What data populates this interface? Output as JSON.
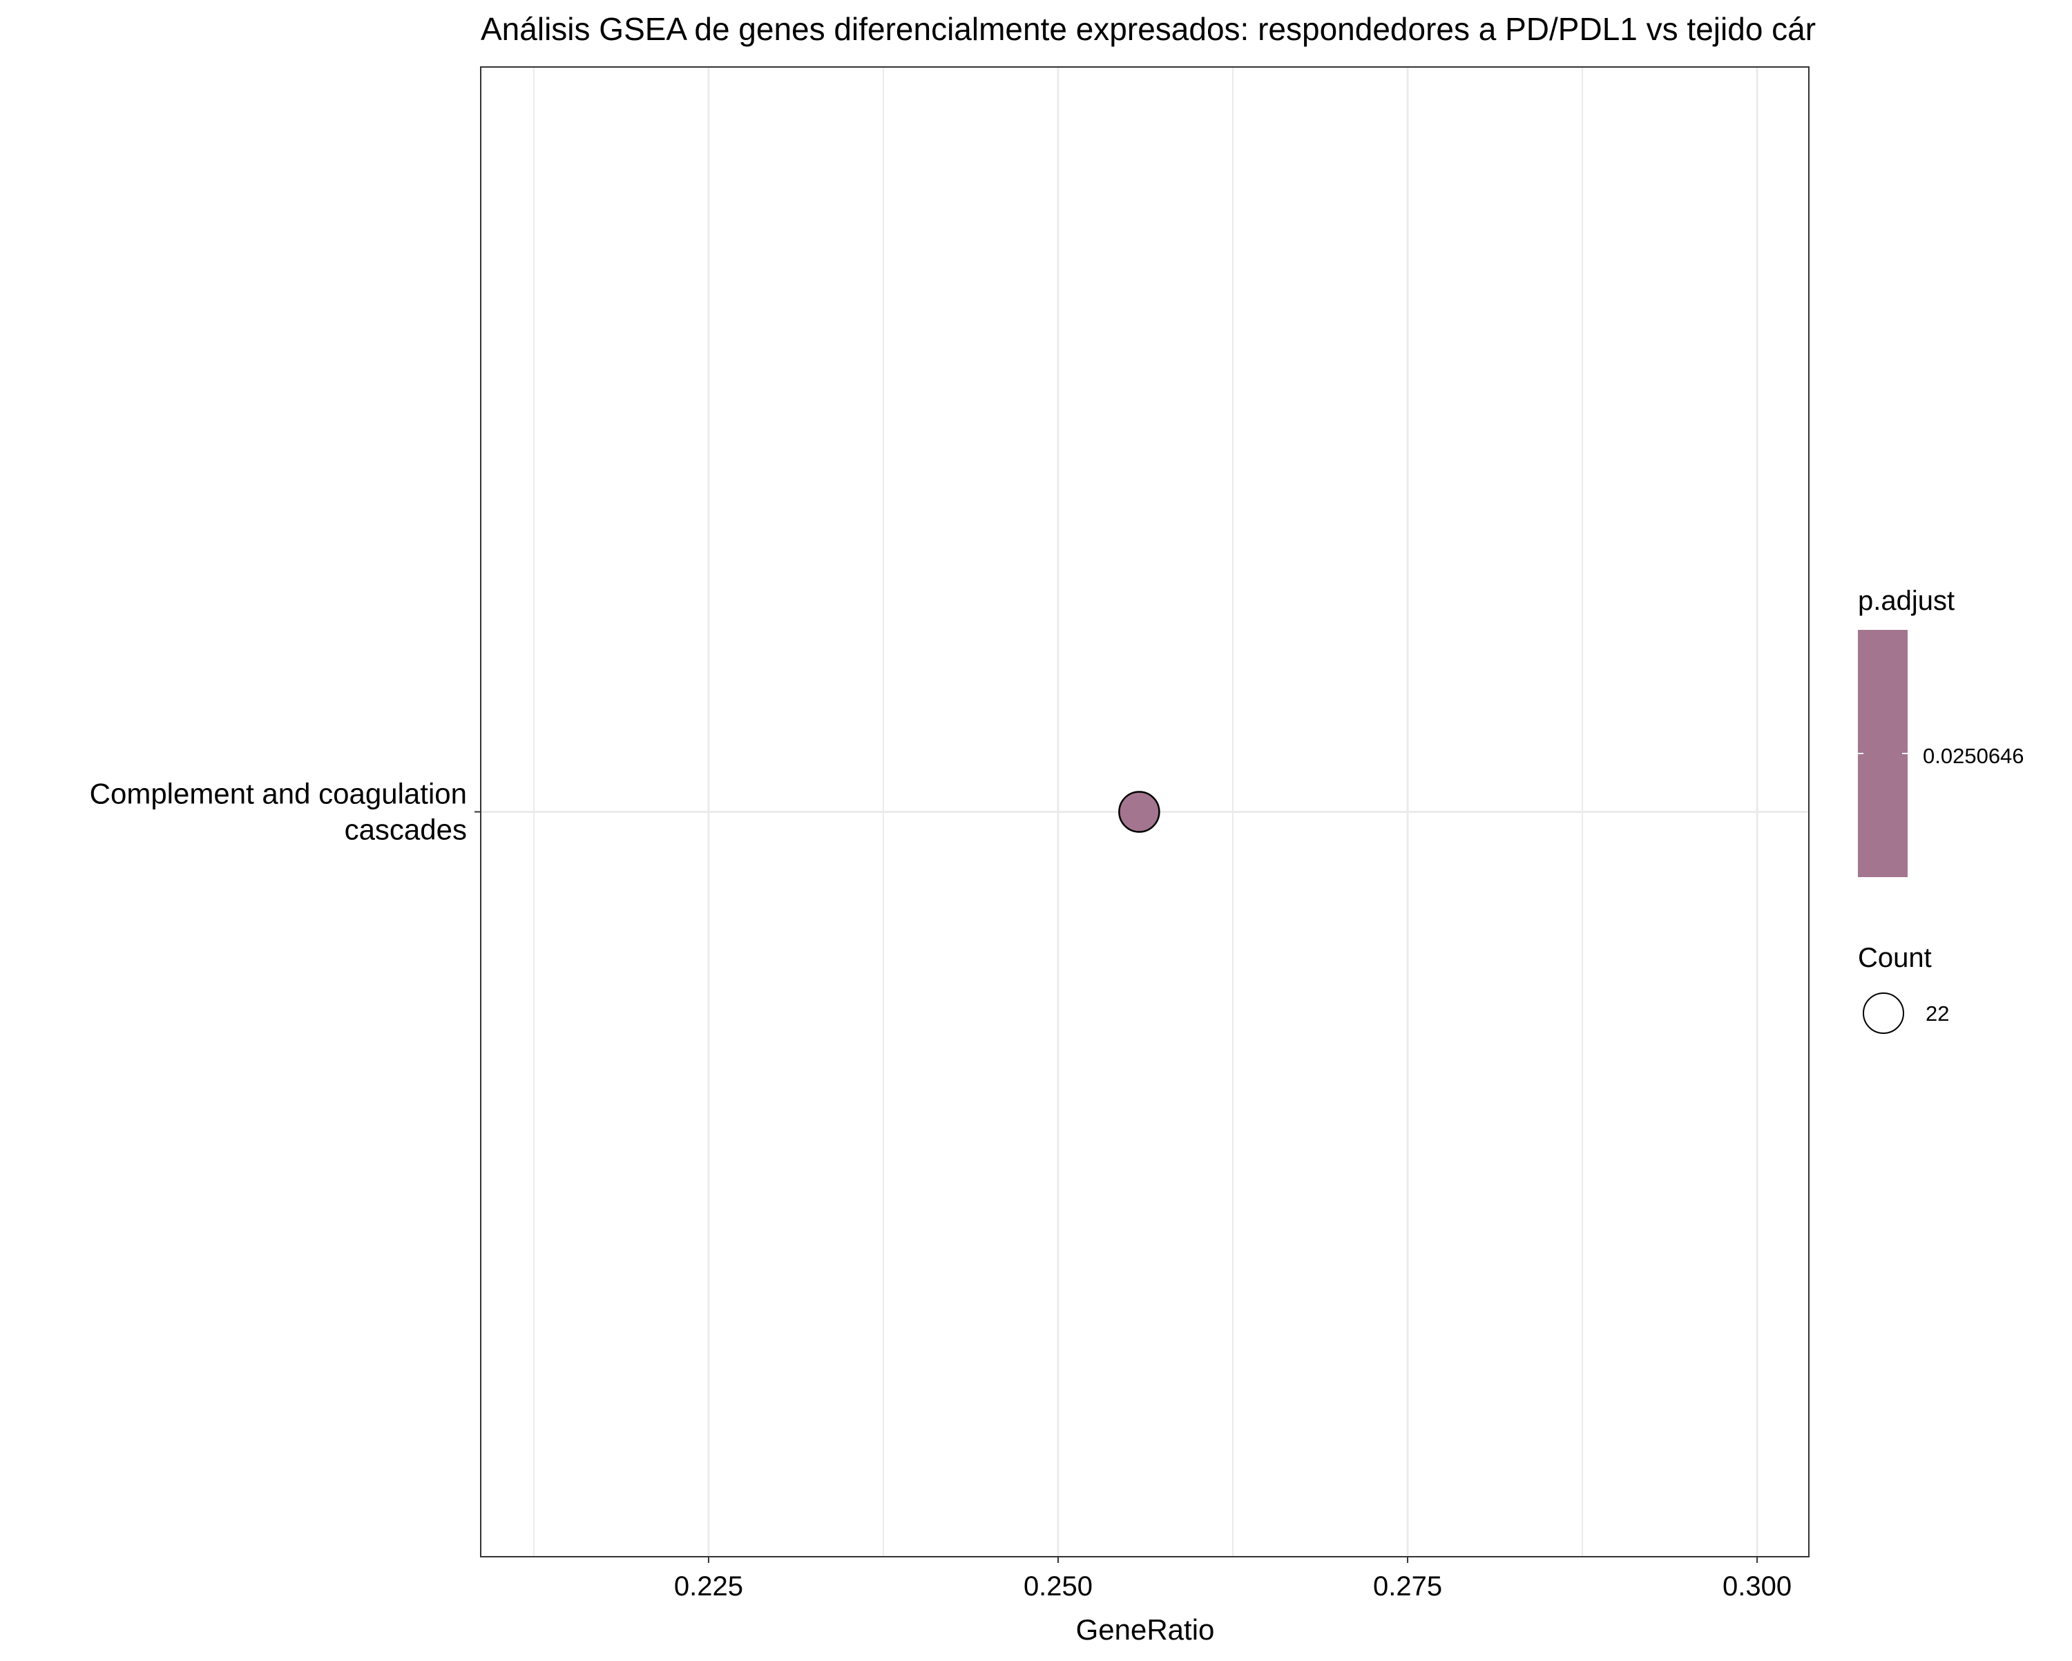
{
  "chart_data": {
    "type": "scatter",
    "title": "Análisis GSEA de genes diferencialmente expresados: respondedores a PD/PDL1 vs tejido cár",
    "xlabel": "GeneRatio",
    "ylabel": "",
    "xlim": [
      0.2087,
      0.3037
    ],
    "xticks": [
      {
        "value": 0.225,
        "label": "0.225"
      },
      {
        "value": 0.25,
        "label": "0.250"
      },
      {
        "value": 0.275,
        "label": "0.275"
      },
      {
        "value": 0.3,
        "label": "0.300"
      }
    ],
    "x_minor_gridlines": [
      0.2125,
      0.2375,
      0.2625,
      0.2875
    ],
    "categories": [
      {
        "label_lines": [
          "Complement and coagulation",
          "cascades"
        ]
      }
    ],
    "points": [
      {
        "category_index": 0,
        "x": 0.2558,
        "count": 22,
        "p_adjust": 0.0250646
      }
    ],
    "grid": true,
    "legend_position": "right",
    "legend_color": {
      "title": "p.adjust",
      "tick_label": "0.0250646",
      "color": "#a4758e"
    },
    "legend_size": {
      "title": "Count",
      "label": "22"
    },
    "colors": {
      "point_fill": "#a4758e",
      "point_stroke": "#000000",
      "panel_border": "#333333",
      "grid": "#ebebeb",
      "tick": "#333333"
    }
  }
}
